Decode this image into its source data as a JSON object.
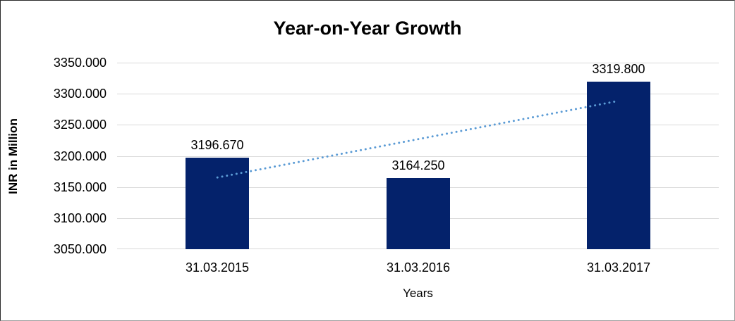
{
  "chart_data": {
    "type": "bar",
    "title": "Year-on-Year Growth",
    "xlabel": "Years",
    "ylabel": "INR in Million",
    "categories": [
      "31.03.2015",
      "31.03.2016",
      "31.03.2017"
    ],
    "values": [
      3196.67,
      3164.25,
      3319.8
    ],
    "data_labels": [
      "3196.670",
      "3164.250",
      "3319.800"
    ],
    "ylim": [
      3050,
      3350
    ],
    "ytick_labels": [
      "3350.000",
      "3300.000",
      "3250.000",
      "3200.000",
      "3150.000",
      "3100.000",
      "3050.000"
    ],
    "grid": "horizontal-on",
    "legend": "none",
    "bar_color": "#04226B",
    "gridline_color": "#d9d9d9",
    "trendline": {
      "type": "linear",
      "style": "dotted",
      "color": "#5B9BD5",
      "start_value": 3165.3,
      "end_value": 3288.5,
      "start_category_index": 0,
      "end_category_index": 2
    }
  }
}
